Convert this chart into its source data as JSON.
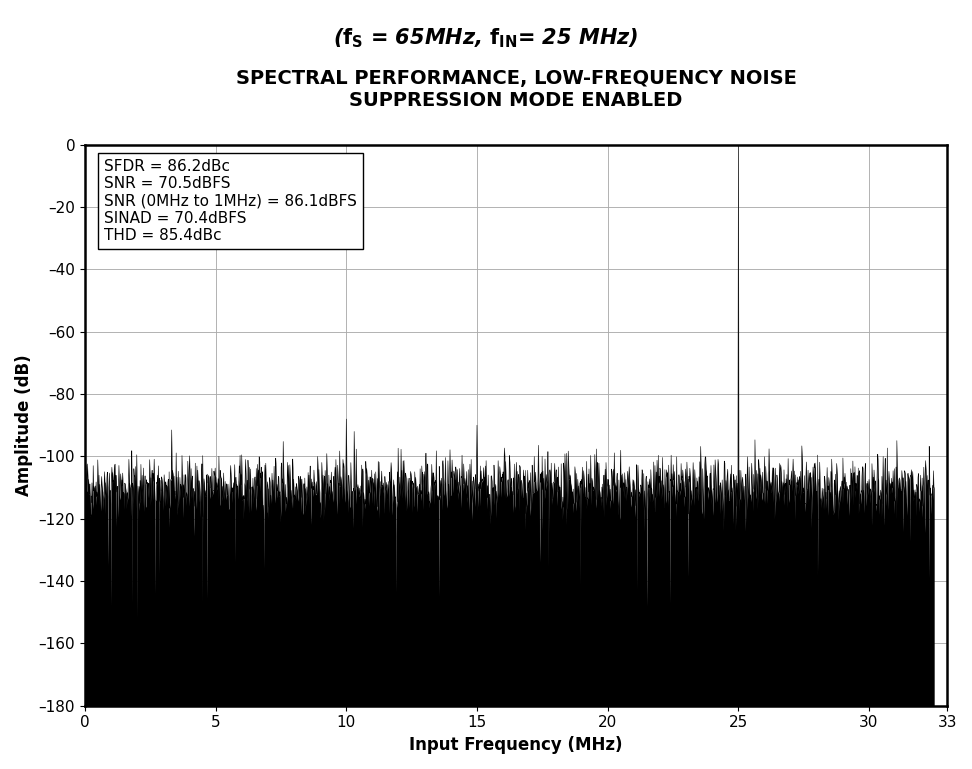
{
  "title_line1": "SPECTRAL PERFORMANCE, LOW-FREQUENCY NOISE",
  "title_line2": "SUPPRESSION MODE ENABLED",
  "xlabel": "Input Frequency (MHz)",
  "ylabel": "Amplitude (dB)",
  "xlim": [
    0,
    33
  ],
  "ylim": [
    -180,
    0
  ],
  "yticks": [
    0,
    -20,
    -40,
    -60,
    -80,
    -100,
    -120,
    -140,
    -160,
    -180
  ],
  "ytick_labels": [
    "0",
    "–20",
    "–40",
    "–60",
    "–80",
    "–100",
    "–120",
    "–140",
    "–160",
    "–180"
  ],
  "xticks": [
    0,
    5,
    10,
    15,
    20,
    25,
    30,
    33
  ],
  "annotation_lines": [
    "SFDR = 86.2dBc",
    "SNR = 70.5dBFS",
    "SNR (0MHz to 1MHz) = 86.1dBFS",
    "SINAD = 70.4dBFS",
    "THD = 85.4dBc"
  ],
  "fs_mhz": 65,
  "fin_mhz": 25,
  "noise_floor_db": -110,
  "noise_std_db": 8,
  "signal_db": 0,
  "num_points": 4096,
  "grid_color": "#aaaaaa",
  "line_color": "#000000",
  "background_color": "#ffffff",
  "title_fontsize": 14,
  "label_fontsize": 12,
  "annotation_fontsize": 11,
  "tick_fontsize": 11
}
